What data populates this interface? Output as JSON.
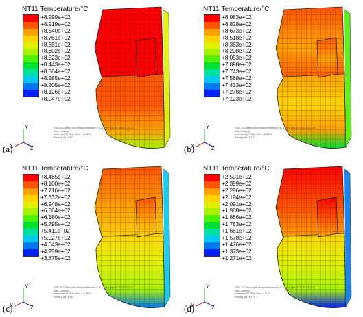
{
  "colors": [
    "#ff0000",
    "#ff5400",
    "#ffa000",
    "#ffd400",
    "#e0f000",
    "#a8f000",
    "#4cf000",
    "#00e030",
    "#00e0a0",
    "#00c8f0",
    "#0078f0",
    "#0020ff"
  ],
  "panels": [
    {
      "title": "NT11 Temperature/°C",
      "tag": "(a)",
      "values": [
        "+8.999e+02",
        "+8.919e+02",
        "+8.840e+02",
        "+8.761e+02",
        "+8.681e+02",
        "+8.602e+02",
        "+8.523e+02",
        "+8.443e+02",
        "+8.364e+02",
        "+8.285e+02",
        "+8.205e+02",
        "+8.126e+02",
        "+8.047e+02"
      ],
      "info": [
        "ODB: D3-heat-a.odb   Abaqus/Standard 6.10-1   Wed Dec 05 16:25:33 2012",
        "Step: Heating",
        "Increment  36: Step Time =   0.1499",
        "Primary Var: NT11"
      ]
    },
    {
      "title": "NT11 Temperature/°C",
      "tag": "(b)",
      "values": [
        "+8.983e+02",
        "+8.828e+02",
        "+8.673e+02",
        "+8.518e+02",
        "+8.363e+02",
        "+8.208e+02",
        "+8.053e+02",
        "+7.898e+02",
        "+7.743e+02",
        "+7.588e+02",
        "+7.433e+02",
        "+7.278e+02",
        "+7.123e+02"
      ],
      "info": [
        "ODB: D3-heat-b.odb   Abaqus/Standard 6.10-1   Wed Dec 05 16:25:33 2012",
        "Step: Heating",
        "Increment  52: Step Time =   0.3999",
        "Primary Var: NT11"
      ]
    },
    {
      "title": "NT11 Temperature/°C",
      "tag": "(c)",
      "values": [
        "+8.485e+02",
        "+8.100e+02",
        "+7.716e+02",
        "+7.332e+02",
        "+6.948e+02",
        "+6.564e+02",
        "+6.180e+02",
        "+5.795e+02",
        "+5.411e+02",
        "+5.027e+02",
        "+4.643e+02",
        "+4.259e+02",
        "+3.875e+02"
      ],
      "info": [
        "ODB: D3-heat-c.odb   Abaqus/Standard 6.10-1   Wed Dec 05 16:25:33 2012",
        "Step: Quench",
        "Increment  48: Step Time =   0.7970",
        "Primary Var: NT11"
      ]
    },
    {
      "title": "NT11 Temperature/°C",
      "tag": "(d)",
      "values": [
        "+2.501e+02",
        "+2.399e+02",
        "+2.296e+02",
        "+2.194e+02",
        "+2.091e+02",
        "+1.988e+02",
        "+1.886e+02",
        "+1.783e+02",
        "+1.681e+02",
        "+1.578e+02",
        "+1.476e+02",
        "+1.373e+02",
        "+1.271e+02"
      ],
      "info": [
        "ODB: D3-heat-d.odb   Abaqus/Standard 6.10-1   Wed Dec 05 16:25:33 2012",
        "Step: Quench",
        "Increment  95: Step Time =   12.33",
        "Primary Var: NT11"
      ]
    }
  ]
}
